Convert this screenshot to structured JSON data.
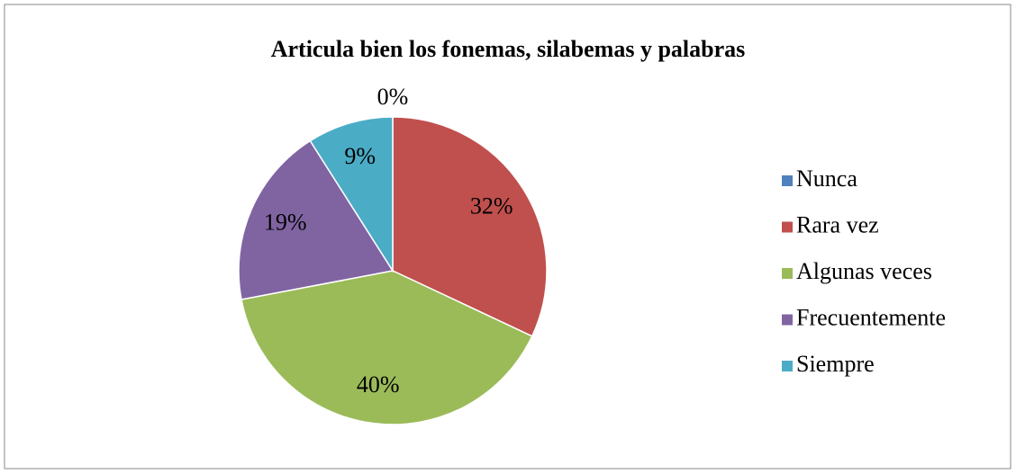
{
  "chart_data": {
    "type": "pie",
    "title": "Articula bien los fonemas, silabemas y palabras",
    "categories": [
      "Nunca",
      "Rara vez",
      "Algunas veces",
      "Frecuentemente",
      "Siempre"
    ],
    "values": [
      0,
      32,
      40,
      19,
      9
    ],
    "value_labels": [
      "0%",
      "32%",
      "40%",
      "19%",
      "9%"
    ],
    "colors": [
      "#4f81bd",
      "#c0504d",
      "#9bbb59",
      "#8064a2",
      "#4bacc6"
    ],
    "legend": "right"
  }
}
